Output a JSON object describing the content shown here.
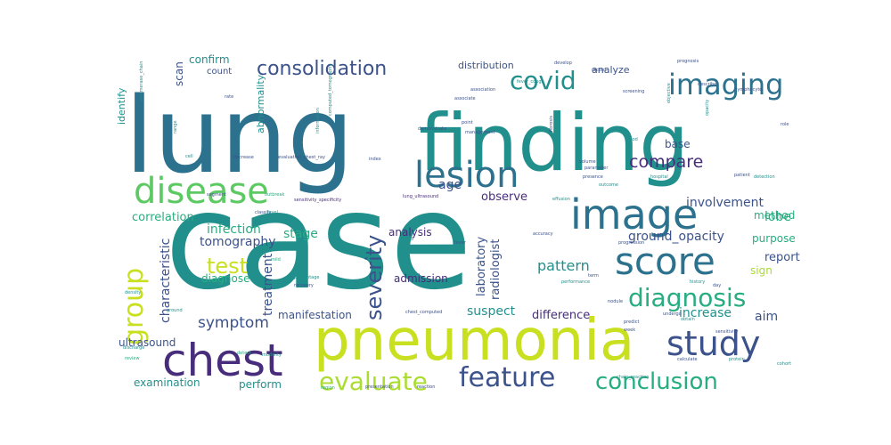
{
  "word_cloud": {
    "colors": {
      "background": "#ffffff",
      "teal": "#21908d",
      "blue_teal": "#2c728e",
      "indigo": "#3b528b",
      "purple": "#472d7b",
      "dark_purple": "#440154",
      "green": "#27ad81",
      "light_green": "#5dc963",
      "lime": "#aadc32",
      "yellow": "#c8e020"
    },
    "words": [
      "case",
      "lung",
      "finding",
      "pneumonia",
      "chest",
      "disease",
      "lesion",
      "image",
      "score",
      "imaging",
      "group",
      "study",
      "diagnosis",
      "covid",
      "consolidation",
      "feature",
      "evaluate",
      "conclusion",
      "test",
      "severity",
      "compare",
      "symptom",
      "ground_opacity",
      "involvement",
      "tomography",
      "infection",
      "characteristic",
      "correlation",
      "stage",
      "lobe",
      "pattern",
      "laboratory",
      "radiologist",
      "report",
      "purpose",
      "method",
      "sign",
      "increase",
      "aim",
      "difference",
      "suspect",
      "manifestation",
      "treatment",
      "diagnose",
      "admission",
      "analysis",
      "observe",
      "examination",
      "perform",
      "ultrasound",
      "confirm",
      "count",
      "scan",
      "identify",
      "abnormality",
      "analyze",
      "base",
      "distribution",
      "age",
      "fever_cough",
      "sensitivity_specificity",
      "lung_ultrasound",
      "evaluation_chest_ray",
      "computed_tomography",
      "chain_reaction",
      "polymerase_chain",
      "prognosis",
      "progression",
      "effusion",
      "outcome",
      "presence",
      "accuracy",
      "association",
      "management",
      "outbreak",
      "classify",
      "percentage",
      "recovery",
      "hospital",
      "patient",
      "detect",
      "modality",
      "protein",
      "calculate",
      "predict",
      "undergo",
      "obtain",
      "role",
      "opacity",
      "information",
      "develop",
      "record",
      "rate",
      "range",
      "segment",
      "decrease",
      "index",
      "volume",
      "parameter",
      "detection",
      "fibrosis",
      "point",
      "associate",
      "describe",
      "screening",
      "blood",
      "review",
      "discharge",
      "density",
      "region",
      "ground",
      "cohort",
      "nodule",
      "performance",
      "reaction",
      "presentation",
      "chest_computed",
      "sensitivity",
      "lymphocyte",
      "fever",
      "week",
      "level",
      "history",
      "mild",
      "demonstrate",
      "objective",
      "cell",
      "child",
      "term",
      "day"
    ]
  }
}
